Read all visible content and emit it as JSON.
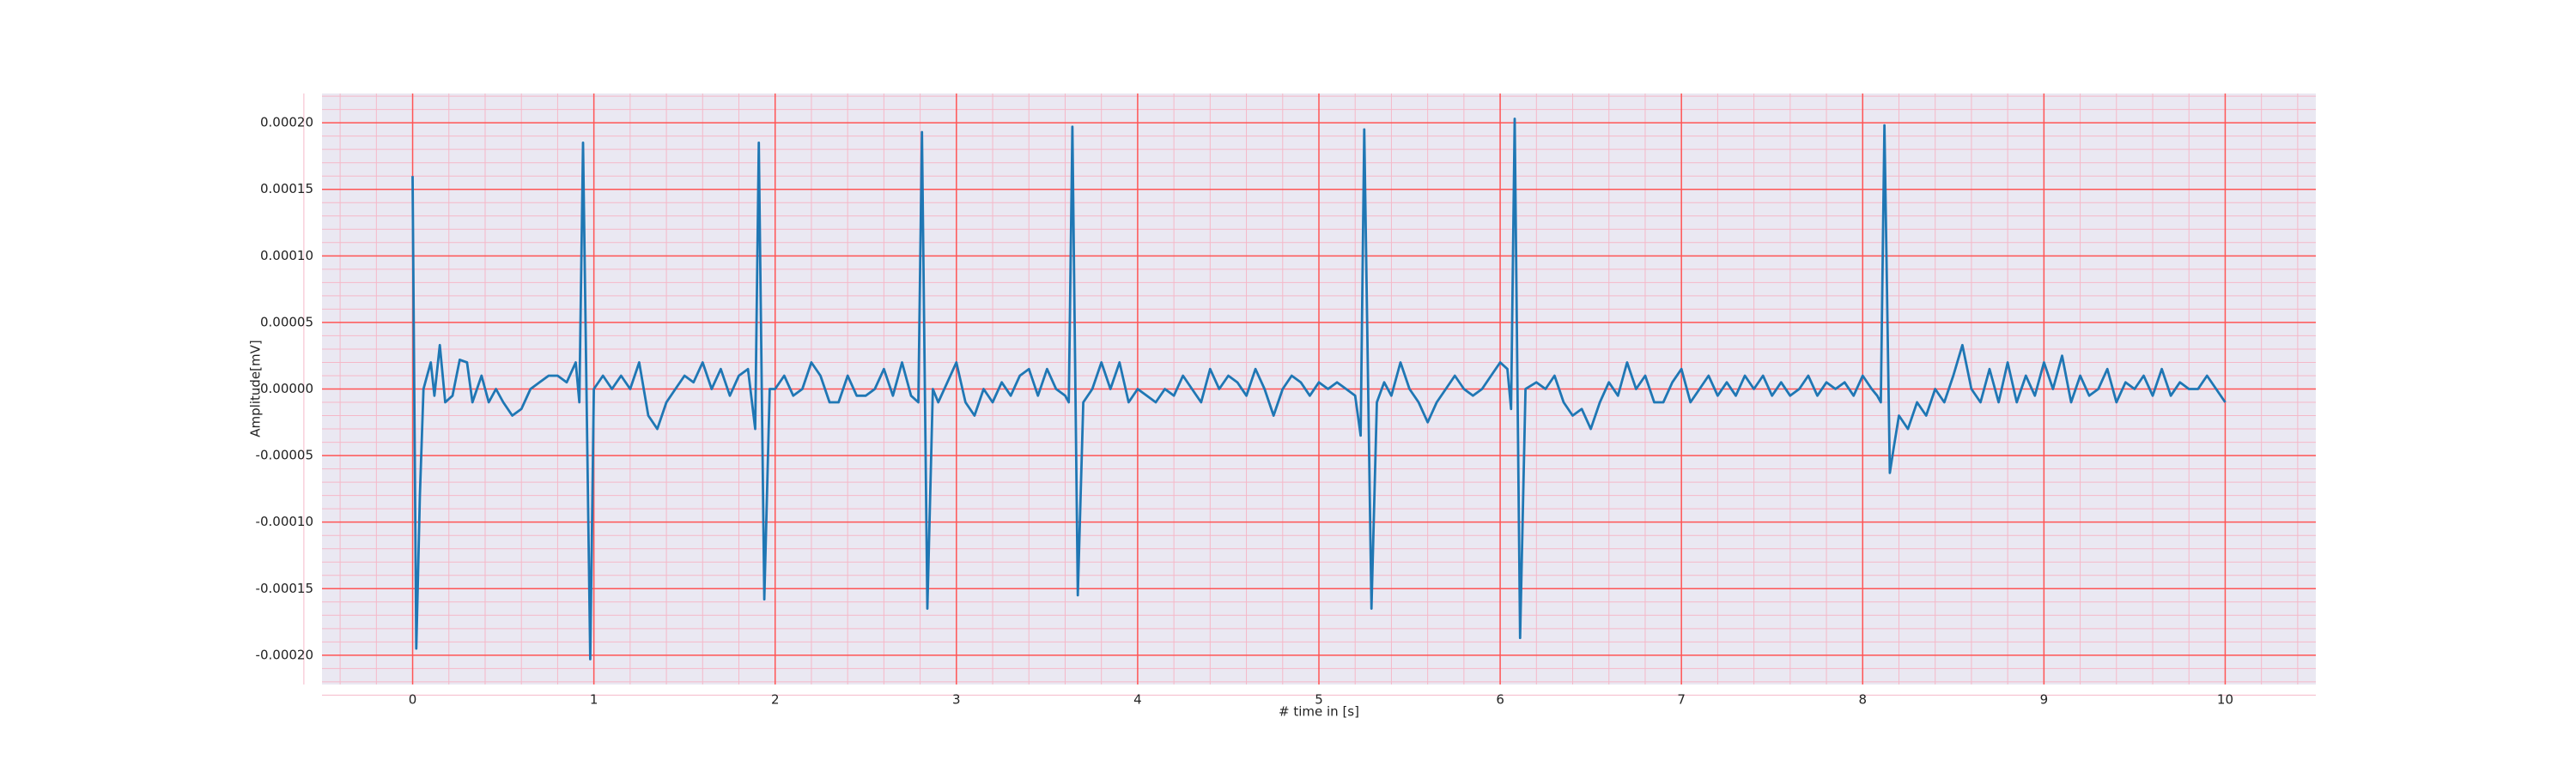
{
  "chart_data": {
    "type": "line",
    "xlabel": "# time in [s]",
    "ylabel": "Amplitude[mV]",
    "color": "#1f77b4",
    "background": "#eae8f2",
    "grid": true,
    "grid_color": "#ff5555",
    "minor_grid_color": "#f5b8c8",
    "minor_divisions": 5,
    "xlim": [
      -0.5,
      10.5
    ],
    "xticks": [
      0,
      1,
      2,
      3,
      4,
      5,
      6,
      7,
      8,
      9,
      10
    ],
    "ylim": [
      -0.000222,
      0.000222
    ],
    "yticks": [
      {
        "value": -0.0002,
        "label": "-0.00020"
      },
      {
        "value": -0.00015,
        "label": "-0.00015"
      },
      {
        "value": -0.0001,
        "label": "-0.00010"
      },
      {
        "value": -5e-05,
        "label": "-0.00005"
      },
      {
        "value": 0,
        "label": "0.00000"
      },
      {
        "value": 5e-05,
        "label": "0.00005"
      },
      {
        "value": 0.0001,
        "label": "0.00010"
      },
      {
        "value": 0.00015,
        "label": "0.00015"
      },
      {
        "value": 0.0002,
        "label": "0.00020"
      }
    ],
    "x": [
      0,
      0.02,
      0.04,
      0.06,
      0.08,
      0.1,
      0.12,
      0.15,
      0.18,
      0.22,
      0.26,
      0.3,
      0.33,
      0.38,
      0.42,
      0.46,
      0.5,
      0.55,
      0.6,
      0.65,
      0.7,
      0.75,
      0.8,
      0.85,
      0.9,
      0.92,
      0.94,
      0.98,
      1.0,
      1.05,
      1.1,
      1.15,
      1.2,
      1.25,
      1.3,
      1.35,
      1.4,
      1.45,
      1.5,
      1.55,
      1.6,
      1.65,
      1.7,
      1.75,
      1.8,
      1.85,
      1.89,
      1.91,
      1.94,
      1.97,
      2.0,
      2.05,
      2.1,
      2.15,
      2.2,
      2.25,
      2.3,
      2.35,
      2.4,
      2.45,
      2.5,
      2.55,
      2.6,
      2.65,
      2.7,
      2.75,
      2.79,
      2.81,
      2.84,
      2.87,
      2.9,
      2.95,
      3.0,
      3.05,
      3.1,
      3.15,
      3.2,
      3.25,
      3.3,
      3.35,
      3.4,
      3.45,
      3.5,
      3.55,
      3.6,
      3.62,
      3.64,
      3.67,
      3.7,
      3.75,
      3.8,
      3.85,
      3.9,
      3.95,
      4.0,
      4.05,
      4.1,
      4.15,
      4.2,
      4.25,
      4.3,
      4.35,
      4.4,
      4.45,
      4.5,
      4.55,
      4.6,
      4.65,
      4.7,
      4.75,
      4.8,
      4.85,
      4.9,
      4.95,
      5.0,
      5.05,
      5.1,
      5.15,
      5.2,
      5.23,
      5.25,
      5.29,
      5.32,
      5.36,
      5.4,
      5.45,
      5.5,
      5.55,
      5.6,
      5.65,
      5.7,
      5.75,
      5.8,
      5.85,
      5.9,
      5.95,
      6.0,
      6.04,
      6.06,
      6.08,
      6.11,
      6.14,
      6.2,
      6.25,
      6.3,
      6.35,
      6.4,
      6.45,
      6.5,
      6.55,
      6.6,
      6.65,
      6.7,
      6.75,
      6.8,
      6.85,
      6.9,
      6.95,
      7.0,
      7.05,
      7.1,
      7.15,
      7.2,
      7.25,
      7.3,
      7.35,
      7.4,
      7.45,
      7.5,
      7.55,
      7.6,
      7.65,
      7.7,
      7.75,
      7.8,
      7.85,
      7.9,
      7.95,
      8.0,
      8.05,
      8.08,
      8.1,
      8.12,
      8.15,
      8.17,
      8.2,
      8.25,
      8.3,
      8.35,
      8.4,
      8.45,
      8.5,
      8.55,
      8.6,
      8.65,
      8.7,
      8.75,
      8.8,
      8.85,
      8.9,
      8.95,
      9.0,
      9.05,
      9.1,
      9.15,
      9.2,
      9.25,
      9.3,
      9.35,
      9.4,
      9.45,
      9.5,
      9.55,
      9.6,
      9.65,
      9.7,
      9.75,
      9.8,
      9.85,
      9.9,
      9.95,
      10.0
    ],
    "values": [
      0.00016,
      -0.000195,
      -8e-05,
      0,
      1e-05,
      2e-05,
      -5e-06,
      3.3e-05,
      -1e-05,
      -5e-06,
      2.2e-05,
      2e-05,
      -1e-05,
      1e-05,
      -1e-05,
      0,
      -1e-05,
      -2e-05,
      -1.5e-05,
      0,
      5e-06,
      1e-05,
      1e-05,
      5e-06,
      2e-05,
      -1e-05,
      0.000185,
      -0.000203,
      0,
      1e-05,
      0,
      1e-05,
      0,
      2e-05,
      -2e-05,
      -3e-05,
      -1e-05,
      0,
      1e-05,
      5e-06,
      2e-05,
      0,
      1.5e-05,
      -5e-06,
      1e-05,
      1.5e-05,
      -3e-05,
      0.000185,
      -0.000158,
      0,
      0,
      1e-05,
      -5e-06,
      0,
      2e-05,
      1e-05,
      -1e-05,
      -1e-05,
      1e-05,
      -5e-06,
      -5e-06,
      0,
      1.5e-05,
      -5e-06,
      2e-05,
      -5e-06,
      -1e-05,
      0.000193,
      -0.000165,
      0,
      -1e-05,
      5e-06,
      2e-05,
      -1e-05,
      -2e-05,
      0,
      -1e-05,
      5e-06,
      -5e-06,
      1e-05,
      1.5e-05,
      -5e-06,
      1.5e-05,
      0,
      -5e-06,
      -1e-05,
      0.000197,
      -0.000155,
      -1e-05,
      0,
      2e-05,
      0,
      2e-05,
      -1e-05,
      0,
      -5e-06,
      -1e-05,
      0,
      -5e-06,
      1e-05,
      0,
      -1e-05,
      1.5e-05,
      0,
      1e-05,
      5e-06,
      -5e-06,
      1.5e-05,
      0,
      -2e-05,
      0,
      1e-05,
      5e-06,
      -5e-06,
      5e-06,
      0,
      5e-06,
      0,
      -5e-06,
      -3.5e-05,
      0.000195,
      -0.000165,
      -1e-05,
      5e-06,
      -5e-06,
      2e-05,
      0,
      -1e-05,
      -2.5e-05,
      -1e-05,
      0,
      1e-05,
      0,
      -5e-06,
      0,
      1e-05,
      2e-05,
      1.5e-05,
      -1.5e-05,
      0.000203,
      -0.000187,
      0,
      5e-06,
      0,
      1e-05,
      -1e-05,
      -2e-05,
      -1.5e-05,
      -3e-05,
      -1e-05,
      5e-06,
      -5e-06,
      2e-05,
      0,
      1e-05,
      -1e-05,
      -1e-05,
      5e-06,
      1.5e-05,
      -1e-05,
      0,
      1e-05,
      -5e-06,
      5e-06,
      -5e-06,
      1e-05,
      0,
      1e-05,
      -5e-06,
      5e-06,
      -5e-06,
      0,
      1e-05,
      -5e-06,
      5e-06,
      0,
      5e-06,
      -5e-06,
      1e-05,
      0,
      -5e-06,
      -1e-05,
      0.000198,
      -6.3e-05,
      -4.5e-05,
      -2e-05,
      -3e-05,
      -1e-05,
      -2e-05,
      0,
      -1e-05,
      1e-05,
      3.3e-05,
      0,
      -1e-05,
      1.5e-05,
      -1e-05,
      2e-05,
      -1e-05,
      1e-05,
      -5e-06,
      2e-05,
      0,
      2.5e-05,
      -1e-05,
      1e-05,
      -5e-06,
      0,
      1.5e-05,
      -1e-05,
      5e-06,
      0,
      1e-05,
      -5e-06,
      1.5e-05,
      -5e-06,
      5e-06,
      0,
      0,
      1e-05,
      0,
      -1e-05
    ]
  }
}
